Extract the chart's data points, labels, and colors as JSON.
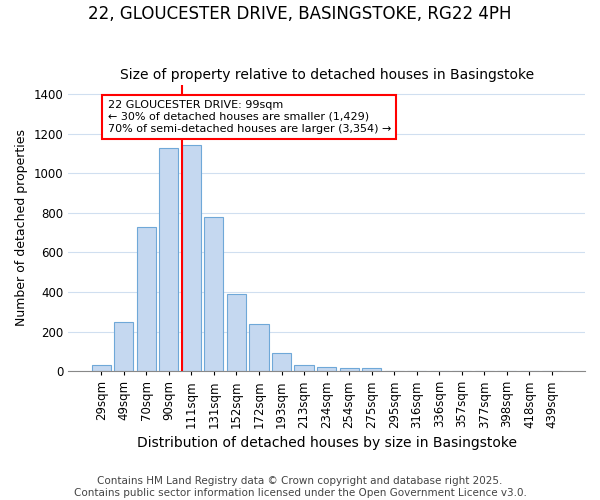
{
  "title": "22, GLOUCESTER DRIVE, BASINGSTOKE, RG22 4PH",
  "subtitle": "Size of property relative to detached houses in Basingstoke",
  "xlabel": "Distribution of detached houses by size in Basingstoke",
  "ylabel": "Number of detached properties",
  "categories": [
    "29sqm",
    "49sqm",
    "70sqm",
    "90sqm",
    "111sqm",
    "131sqm",
    "152sqm",
    "172sqm",
    "193sqm",
    "213sqm",
    "234sqm",
    "254sqm",
    "275sqm",
    "295sqm",
    "316sqm",
    "336sqm",
    "357sqm",
    "377sqm",
    "398sqm",
    "418sqm",
    "439sqm"
  ],
  "values": [
    30,
    250,
    730,
    1130,
    1145,
    780,
    390,
    240,
    90,
    30,
    20,
    15,
    15,
    0,
    0,
    0,
    0,
    0,
    0,
    0,
    0
  ],
  "bar_color": "#c5d8f0",
  "bar_edgecolor": "#6fa8d8",
  "ylim": [
    0,
    1450
  ],
  "yticks": [
    0,
    200,
    400,
    600,
    800,
    1000,
    1200,
    1400
  ],
  "annotation_box_text": "22 GLOUCESTER DRIVE: 99sqm\n← 30% of detached houses are smaller (1,429)\n70% of semi-detached houses are larger (3,354) →",
  "vline_bar_index": 4,
  "background_color": "#ffffff",
  "plot_bg_color": "#ffffff",
  "grid_color": "#d0dff0",
  "footer_line1": "Contains HM Land Registry data © Crown copyright and database right 2025.",
  "footer_line2": "Contains public sector information licensed under the Open Government Licence v3.0.",
  "title_fontsize": 12,
  "subtitle_fontsize": 10,
  "ylabel_fontsize": 9,
  "xlabel_fontsize": 10,
  "tick_fontsize": 8.5,
  "footer_fontsize": 7.5
}
